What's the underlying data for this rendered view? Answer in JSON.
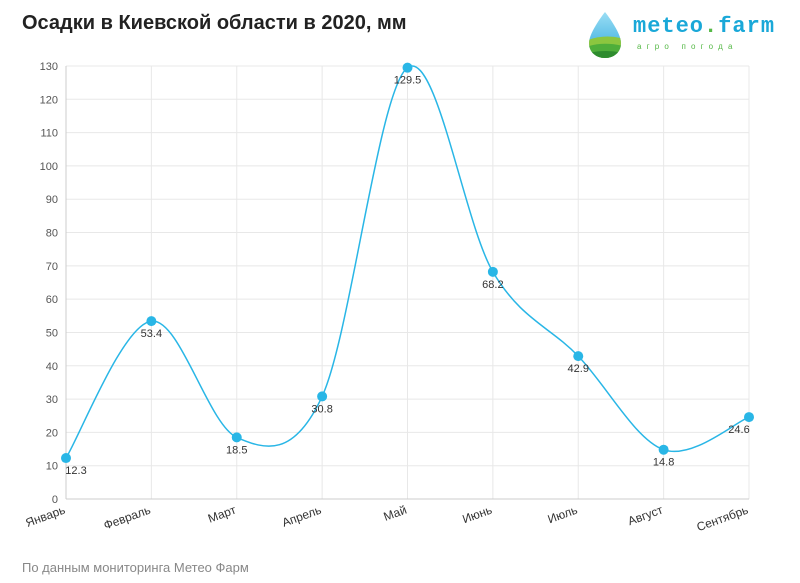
{
  "header": {
    "title": "Осадки в Киевской области в 2020, мм"
  },
  "logo": {
    "name_main": "meteo",
    "name_dot": ".",
    "name_tld": "farm",
    "tagline": "агро погода"
  },
  "footer": {
    "source": "По данным мониторинга Метео Фарм"
  },
  "colors": {
    "line": "#29b6e6",
    "grid": "#e8e8e8",
    "axis": "#cccccc"
  },
  "chart_data": {
    "type": "line",
    "title": "Осадки в Киевской области в 2020, мм",
    "xlabel": "",
    "ylabel": "",
    "categories": [
      "Январь",
      "Февраль",
      "Март",
      "Апрель",
      "Май",
      "Июнь",
      "Июль",
      "Август",
      "Сентябрь"
    ],
    "series": [
      {
        "values": [
          12.3,
          53.4,
          18.5,
          30.8,
          129.5,
          68.2,
          42.9,
          14.8,
          24.6
        ]
      }
    ],
    "ylim": [
      0,
      130
    ],
    "yticks": [
      0,
      10,
      20,
      30,
      40,
      50,
      60,
      70,
      80,
      90,
      100,
      110,
      120,
      130
    ],
    "grid": true,
    "data_labels": true,
    "smooth": true
  }
}
